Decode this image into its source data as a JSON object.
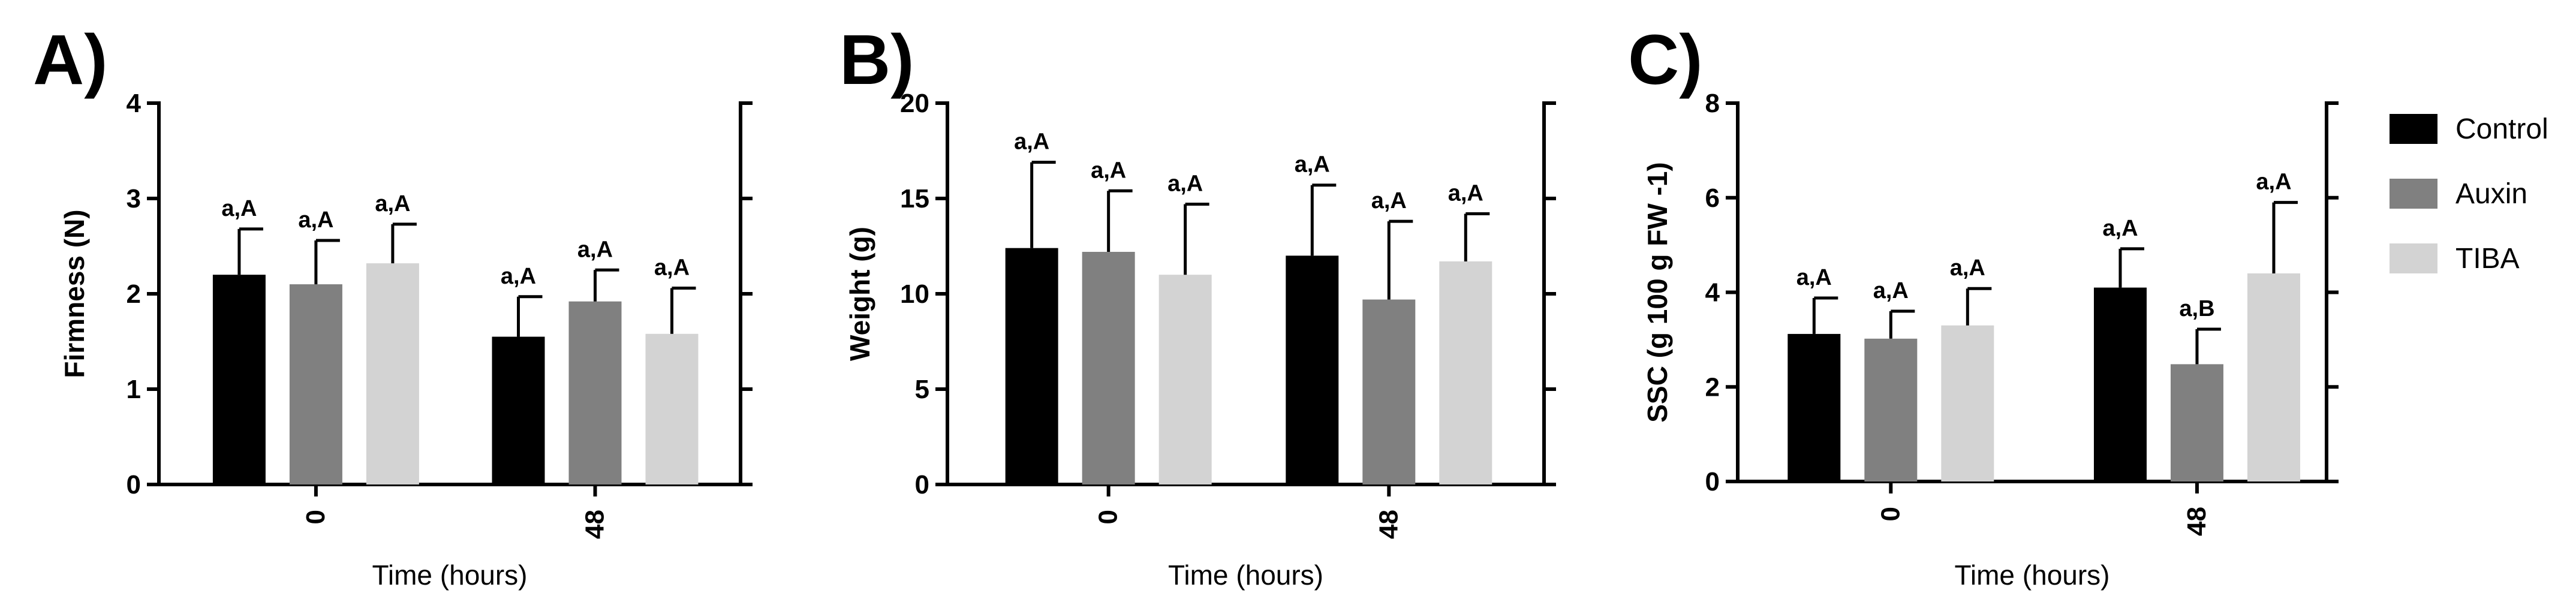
{
  "legend": [
    {
      "name": "Control",
      "color": "#000000"
    },
    {
      "name": "Auxin",
      "color": "#808080"
    },
    {
      "name": "TIBA",
      "color": "#d3d3d3"
    }
  ],
  "chart_data": [
    {
      "type": "bar",
      "panel_label": "A)",
      "xlabel": "Time (hours)",
      "ylabel": "Firmness (N)",
      "ylim": [
        0,
        4
      ],
      "yticks": [
        "0",
        "1",
        "2",
        "3",
        "4"
      ],
      "categories": [
        "0",
        "48"
      ],
      "series": [
        {
          "name": "Control",
          "values": [
            2.2,
            1.55
          ],
          "errors": [
            0.48,
            0.42
          ],
          "labels": [
            "a,A",
            "a,A"
          ]
        },
        {
          "name": "Auxin",
          "values": [
            2.1,
            1.92
          ],
          "errors": [
            0.46,
            0.33
          ],
          "labels": [
            "a,A",
            "a,A"
          ]
        },
        {
          "name": "TIBA",
          "values": [
            2.32,
            1.58
          ],
          "errors": [
            0.41,
            0.48
          ],
          "labels": [
            "a,A",
            "a,A"
          ]
        }
      ]
    },
    {
      "type": "bar",
      "panel_label": "B)",
      "xlabel": "Time (hours)",
      "ylabel": "Weight (g)",
      "ylim": [
        0,
        20
      ],
      "yticks": [
        "0",
        "5",
        "10",
        "15",
        "20"
      ],
      "categories": [
        "0",
        "48"
      ],
      "series": [
        {
          "name": "Control",
          "values": [
            12.4,
            12.0
          ],
          "errors": [
            4.5,
            3.7
          ],
          "labels": [
            "a,A",
            "a,A"
          ]
        },
        {
          "name": "Auxin",
          "values": [
            12.2,
            9.7
          ],
          "errors": [
            3.2,
            4.1
          ],
          "labels": [
            "a,A",
            "a,A"
          ]
        },
        {
          "name": "TIBA",
          "values": [
            11.0,
            11.7
          ],
          "errors": [
            3.7,
            2.5
          ],
          "labels": [
            "a,A",
            "a,A"
          ]
        }
      ]
    },
    {
      "type": "bar",
      "panel_label": "C)",
      "xlabel": "Time (hours)",
      "ylabel": "SSC (g 100 g FW -1)",
      "ylim": [
        0,
        8
      ],
      "yticks": [
        "0",
        "2",
        "4",
        "6",
        "8"
      ],
      "categories": [
        "0",
        "48"
      ],
      "series": [
        {
          "name": "Control",
          "values": [
            3.12,
            4.1
          ],
          "errors": [
            0.76,
            0.82
          ],
          "labels": [
            "a,A",
            "a,A"
          ]
        },
        {
          "name": "Auxin",
          "values": [
            3.02,
            2.48
          ],
          "errors": [
            0.58,
            0.74
          ],
          "labels": [
            "a,A",
            "a,B"
          ]
        },
        {
          "name": "TIBA",
          "values": [
            3.3,
            4.4
          ],
          "errors": [
            0.78,
            1.5
          ],
          "labels": [
            "a,A",
            "a,A"
          ]
        }
      ]
    }
  ]
}
